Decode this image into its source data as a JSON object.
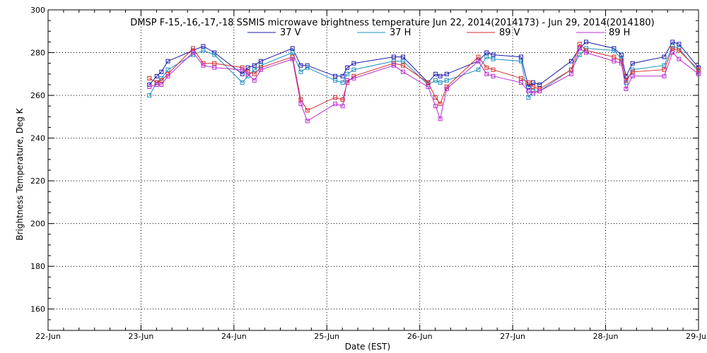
{
  "chart_data": {
    "type": "line",
    "title": "DMSP F-15,-16,-17,-18 SSMIS microwave brightness temperature Jun 22, 2014(2014173) - Jun 29, 2014(2014180)",
    "xlabel": "Date (EST)",
    "ylabel": "Brightness Temperature, Deg K",
    "xlim": [
      0,
      7
    ],
    "ylim": [
      150,
      300
    ],
    "yticks": [
      160,
      180,
      200,
      220,
      240,
      260,
      280,
      300
    ],
    "xticks": [
      0,
      1,
      2,
      3,
      4,
      5,
      6,
      7
    ],
    "xtick_labels": [
      "22-Jun",
      "23-Jun",
      "24-Jun",
      "25-Jun",
      "26-Jun",
      "27-Jun",
      "28-Jun",
      "29-Jun"
    ],
    "grid": true,
    "legend_position": "top-center",
    "series": [
      {
        "name": "37 V",
        "color": "#1a1aa8",
        "x": [
          1.09,
          1.17,
          1.22,
          1.29,
          1.56,
          1.67,
          1.79,
          2.09,
          2.15,
          2.22,
          2.29,
          2.63,
          2.72,
          2.79,
          3.09,
          3.17,
          3.22,
          3.29,
          3.72,
          3.82,
          4.09,
          4.17,
          4.22,
          4.29,
          4.63,
          4.72,
          4.79,
          5.09,
          5.17,
          5.22,
          5.29,
          5.63,
          5.72,
          5.79,
          6.09,
          6.17,
          6.22,
          6.29,
          6.63,
          6.72,
          6.79,
          7.0
        ],
        "values": [
          265,
          269,
          271,
          276,
          281,
          283,
          280,
          270,
          273,
          274,
          276,
          282,
          274,
          274,
          269,
          269,
          273,
          275,
          278,
          278,
          266,
          270,
          269,
          270,
          276,
          280,
          279,
          278,
          264,
          266,
          265,
          276,
          282,
          285,
          282,
          279,
          269,
          275,
          278,
          285,
          284,
          273
        ]
      },
      {
        "name": "37 H",
        "color": "#1f8fc0",
        "x": [
          1.09,
          1.17,
          1.22,
          1.29,
          1.56,
          1.67,
          1.79,
          2.09,
          2.15,
          2.22,
          2.29,
          2.63,
          2.72,
          2.79,
          3.09,
          3.17,
          3.22,
          3.29,
          3.72,
          3.82,
          4.09,
          4.17,
          4.22,
          4.29,
          4.63,
          4.72,
          4.79,
          5.09,
          5.17,
          5.22,
          5.29,
          5.63,
          5.72,
          5.79,
          6.09,
          6.17,
          6.22,
          6.29,
          6.63,
          6.72,
          6.79,
          7.0
        ],
        "values": [
          260,
          266,
          268,
          272,
          279,
          281,
          279,
          266,
          269,
          272,
          274,
          280,
          271,
          273,
          267,
          266,
          270,
          272,
          276,
          276,
          265,
          267,
          266,
          267,
          272,
          278,
          277,
          276,
          259,
          262,
          262,
          272,
          279,
          282,
          281,
          277,
          266,
          272,
          274,
          283,
          282,
          271
        ]
      },
      {
        "name": "89 V",
        "color": "#d42a2a",
        "x": [
          1.09,
          1.17,
          1.22,
          1.29,
          1.56,
          1.67,
          1.79,
          2.09,
          2.15,
          2.22,
          2.29,
          2.63,
          2.72,
          2.79,
          3.09,
          3.17,
          3.22,
          3.29,
          3.72,
          3.82,
          4.09,
          4.17,
          4.22,
          4.29,
          4.63,
          4.72,
          4.79,
          5.09,
          5.17,
          5.22,
          5.29,
          5.63,
          5.72,
          5.79,
          6.09,
          6.17,
          6.22,
          6.29,
          6.63,
          6.72,
          6.79,
          7.0
        ],
        "values": [
          268,
          266,
          267,
          270,
          282,
          275,
          275,
          273,
          271,
          270,
          273,
          278,
          258,
          253,
          259,
          258,
          266,
          269,
          275,
          274,
          266,
          259,
          256,
          264,
          278,
          273,
          272,
          268,
          266,
          264,
          263,
          272,
          284,
          281,
          278,
          276,
          267,
          271,
          272,
          282,
          281,
          272
        ]
      },
      {
        "name": "89 H",
        "color": "#b82ad0",
        "x": [
          1.09,
          1.17,
          1.22,
          1.29,
          1.56,
          1.67,
          1.79,
          2.09,
          2.15,
          2.22,
          2.29,
          2.63,
          2.72,
          2.79,
          3.09,
          3.17,
          3.22,
          3.29,
          3.72,
          3.82,
          4.09,
          4.17,
          4.22,
          4.29,
          4.63,
          4.72,
          4.79,
          5.09,
          5.17,
          5.22,
          5.29,
          5.63,
          5.72,
          5.79,
          6.09,
          6.17,
          6.22,
          6.29,
          6.63,
          6.72,
          6.79,
          7.0
        ],
        "values": [
          264,
          265,
          265,
          269,
          280,
          274,
          273,
          272,
          270,
          267,
          272,
          277,
          256,
          248,
          256,
          255,
          267,
          268,
          274,
          271,
          264,
          255,
          249,
          263,
          276,
          270,
          269,
          266,
          262,
          261,
          262,
          270,
          282,
          280,
          276,
          275,
          263,
          269,
          269,
          280,
          277,
          270
        ]
      }
    ]
  }
}
